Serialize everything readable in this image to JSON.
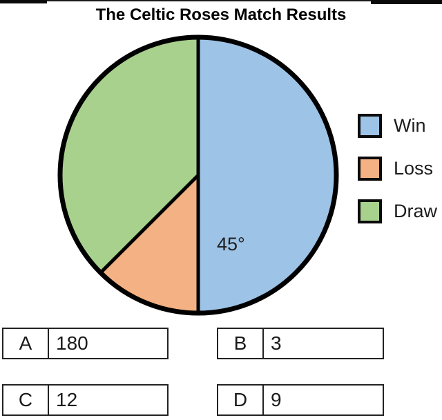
{
  "chart_data": {
    "type": "pie",
    "title": "The Celtic Roses Match Results",
    "total_degrees": 360,
    "slices": [
      {
        "label": "Win",
        "start_deg": 0,
        "sweep_deg": 180,
        "color": "#9DC3E6",
        "annotation": ""
      },
      {
        "label": "Loss",
        "start_deg": 180,
        "sweep_deg": 45,
        "color": "#F4B183",
        "annotation": "45°"
      },
      {
        "label": "Draw",
        "start_deg": 225,
        "sweep_deg": 135,
        "color": "#A9D18E",
        "annotation": ""
      }
    ],
    "legend_position": "right",
    "legend": [
      "Win",
      "Loss",
      "Draw"
    ],
    "outline_color": "#000000"
  },
  "answers": [
    {
      "letter": "A",
      "value": "180"
    },
    {
      "letter": "B",
      "value": "3"
    },
    {
      "letter": "C",
      "value": "12"
    },
    {
      "letter": "D",
      "value": "9"
    }
  ]
}
